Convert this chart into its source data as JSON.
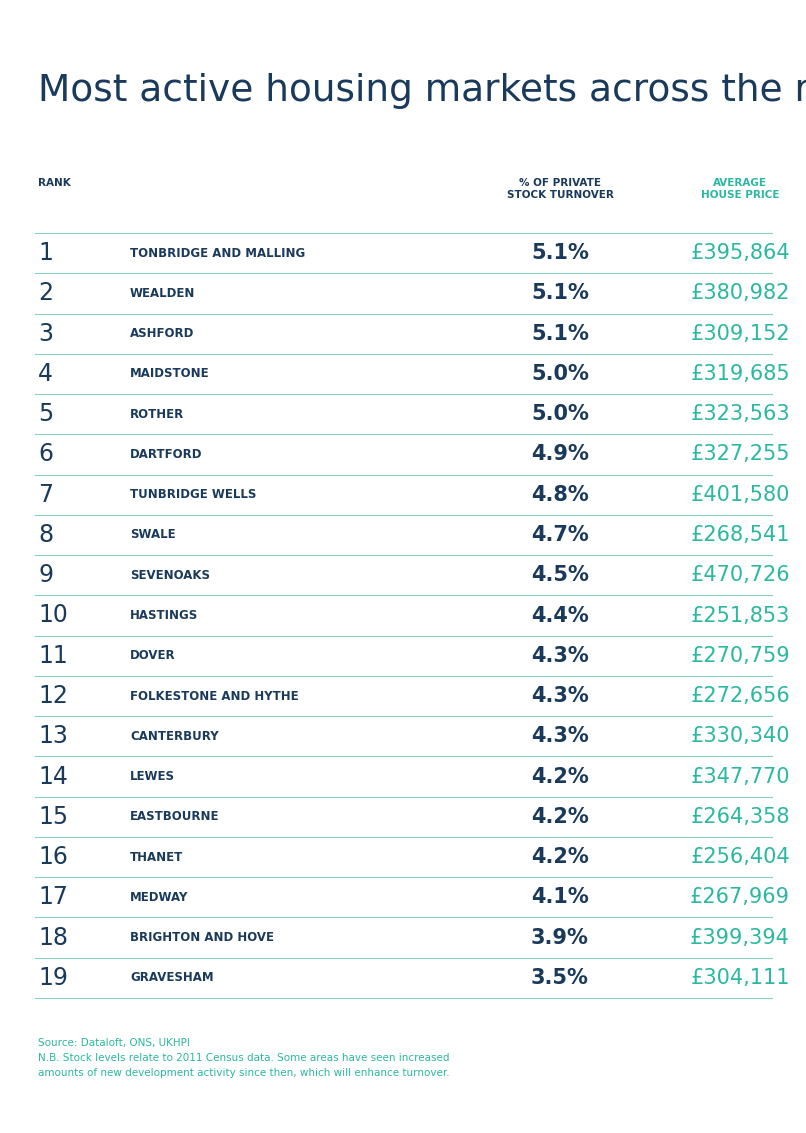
{
  "title": "Most active housing markets across the region",
  "title_color": "#1a3a5c",
  "col_rank_label": "RANK",
  "col_turnover_label": "% OF PRIVATE\nSTOCK TURNOVER",
  "col_price_label": "AVERAGE\nHOUSE PRICE",
  "header_rank_color": "#1a3a5c",
  "header_turnover_color": "#1a3a5c",
  "header_price_color": "#2ab8a0",
  "rows": [
    {
      "rank": "1",
      "area": "TONBRIDGE AND MALLING",
      "turnover": "5.1%",
      "price": "£395,864"
    },
    {
      "rank": "2",
      "area": "WEALDEN",
      "turnover": "5.1%",
      "price": "£380,982"
    },
    {
      "rank": "3",
      "area": "ASHFORD",
      "turnover": "5.1%",
      "price": "£309,152"
    },
    {
      "rank": "4",
      "area": "MAIDSTONE",
      "turnover": "5.0%",
      "price": "£319,685"
    },
    {
      "rank": "5",
      "area": "ROTHER",
      "turnover": "5.0%",
      "price": "£323,563"
    },
    {
      "rank": "6",
      "area": "DARTFORD",
      "turnover": "4.9%",
      "price": "£327,255"
    },
    {
      "rank": "7",
      "area": "TUNBRIDGE WELLS",
      "turnover": "4.8%",
      "price": "£401,580"
    },
    {
      "rank": "8",
      "area": "SWALE",
      "turnover": "4.7%",
      "price": "£268,541"
    },
    {
      "rank": "9",
      "area": "SEVENOAKS",
      "turnover": "4.5%",
      "price": "£470,726"
    },
    {
      "rank": "10",
      "area": "HASTINGS",
      "turnover": "4.4%",
      "price": "£251,853"
    },
    {
      "rank": "11",
      "area": "DOVER",
      "turnover": "4.3%",
      "price": "£270,759"
    },
    {
      "rank": "12",
      "area": "FOLKESTONE AND HYTHE",
      "turnover": "4.3%",
      "price": "£272,656"
    },
    {
      "rank": "13",
      "area": "CANTERBURY",
      "turnover": "4.3%",
      "price": "£330,340"
    },
    {
      "rank": "14",
      "area": "LEWES",
      "turnover": "4.2%",
      "price": "£347,770"
    },
    {
      "rank": "15",
      "area": "EASTBOURNE",
      "turnover": "4.2%",
      "price": "£264,358"
    },
    {
      "rank": "16",
      "area": "THANET",
      "turnover": "4.2%",
      "price": "£256,404"
    },
    {
      "rank": "17",
      "area": "MEDWAY",
      "turnover": "4.1%",
      "price": "£267,969"
    },
    {
      "rank": "18",
      "area": "BRIGHTON AND HOVE",
      "turnover": "3.9%",
      "price": "£399,394"
    },
    {
      "rank": "19",
      "area": "GRAVESHAM",
      "turnover": "3.5%",
      "price": "£304,111"
    }
  ],
  "rank_color": "#1a3a5c",
  "area_color": "#1a3a5c",
  "turnover_color": "#1a3a5c",
  "price_color": "#2ab8a0",
  "line_color": "#2ab8a0",
  "footer_text": "Source: Dataloft, ONS, UKHPI\nN.B. Stock levels relate to 2011 Census data. Some areas have seen increased\namounts of new development activity since then, which will enhance turnover.",
  "footer_color": "#2ab8a0",
  "bg_color": "#ffffff"
}
